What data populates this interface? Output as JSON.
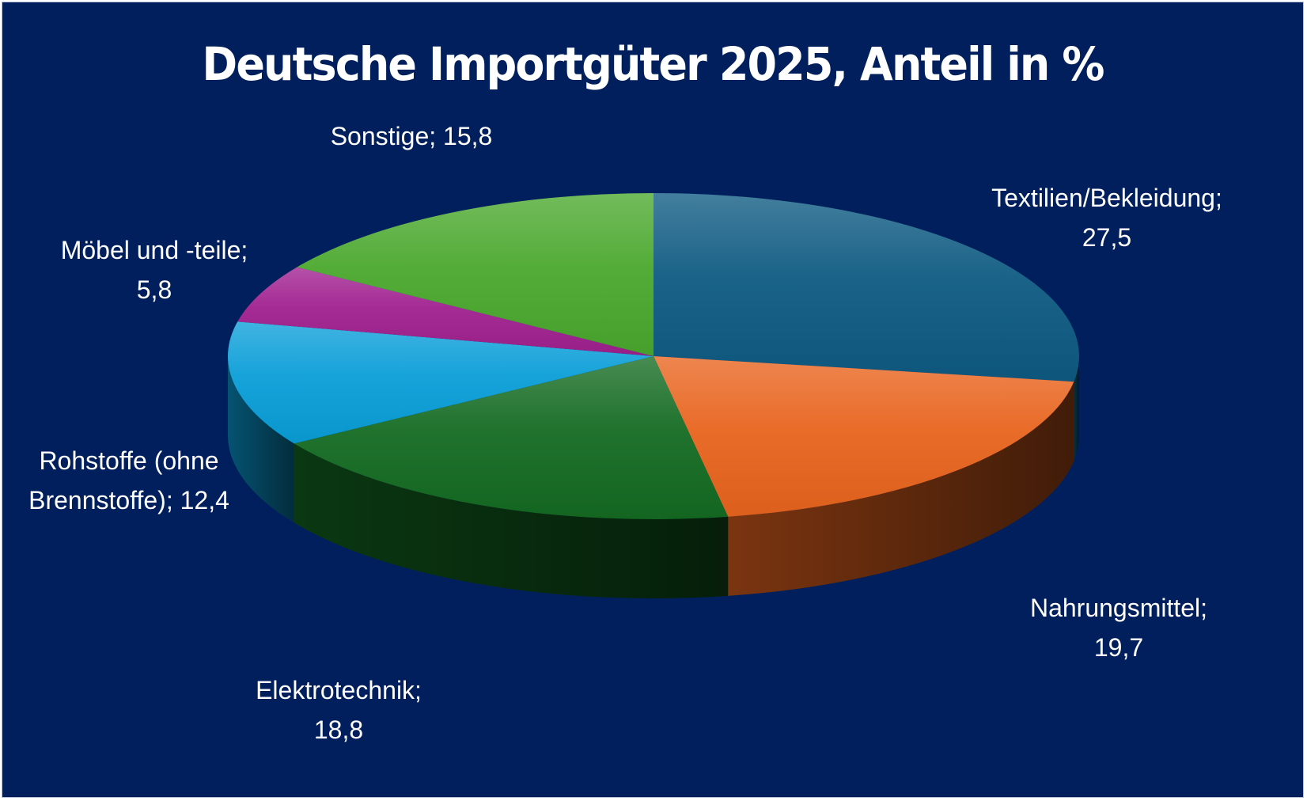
{
  "chart_data": {
    "type": "pie",
    "title": "Deutsche Importgüter 2025, Anteil in %",
    "background": "#001f5c",
    "legend": "none",
    "slices": [
      {
        "label": "Textilien/Bekleidung",
        "value": 27.5,
        "value_text": "27,5",
        "color": "#0e5a82",
        "label_lines": [
          "Textilien/Bekleidung;",
          "27,5"
        ]
      },
      {
        "label": "Nahrungsmittel",
        "value": 19.7,
        "value_text": "19,7",
        "color": "#e8641e",
        "label_lines": [
          "Nahrungsmittel;",
          "19,7"
        ]
      },
      {
        "label": "Elektrotechnik",
        "value": 18.8,
        "value_text": "18,8",
        "color": "#146b22",
        "label_lines": [
          "Elektrotechnik;",
          "18,8"
        ]
      },
      {
        "label": "Rohstoffe (ohne Brennstoffe)",
        "value": 12.4,
        "value_text": "12,4",
        "color": "#0a9ed8",
        "label_lines": [
          "Rohstoffe (ohne",
          "Brennstoffe); 12,4"
        ]
      },
      {
        "label": "Möbel und -teile",
        "value": 5.8,
        "value_text": "5,8",
        "color": "#a0208f",
        "label_lines": [
          "Möbel und -teile;",
          "5,8"
        ]
      },
      {
        "label": "Sonstige",
        "value": 15.8,
        "value_text": "15,8",
        "color": "#4ba82e",
        "label_lines": [
          "Sonstige; 15,8"
        ]
      }
    ]
  }
}
